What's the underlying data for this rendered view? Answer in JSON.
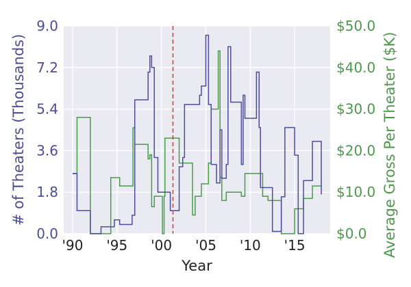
{
  "chart_data": {
    "type": "line",
    "step": "post",
    "xlabel": "Year",
    "ylabel_left": "# of Theaters (Thousands)",
    "ylabel_right": "Average Gross Per Theater ($K)",
    "xlim": [
      1989.0,
      2019.0
    ],
    "ylim_left": [
      0,
      9.0
    ],
    "ylim_right": [
      0,
      50.0
    ],
    "x_ticks": [
      1990,
      1995,
      2000,
      2005,
      2010,
      2015
    ],
    "x_tick_labels": [
      "'90",
      "'95",
      "'00",
      "'05",
      "'10",
      "'15"
    ],
    "y_left_ticks": [
      0,
      1.8,
      3.6,
      5.4,
      7.2,
      9.0
    ],
    "y_left_tick_labels": [
      "0.0",
      "1.8",
      "3.6",
      "5.4",
      "7.2",
      "9.0"
    ],
    "y_right_ticks": [
      0,
      10,
      20,
      30,
      40,
      50
    ],
    "y_right_tick_labels": [
      "$0.0",
      "$10.0",
      "$20.0",
      "$30.0",
      "$40.0",
      "$50.0"
    ],
    "vline_x": 2001.3,
    "grid": true,
    "colors": {
      "theaters": "#4c4c9c",
      "gross": "#4a9a4a",
      "vline": "#b05050",
      "left_axis_text": "#4c4c9c",
      "right_axis_text": "#4a9a4a",
      "plot_bg": "#eaeaf2"
    },
    "series": [
      {
        "axis": "left",
        "x": [
          1990.0,
          1990.3,
          1990.5,
          1991.0,
          1992.0,
          1993.2,
          1994.3,
          1994.7,
          1995.3,
          1996.5,
          1996.7,
          1996.8,
          1997.0,
          1998.3,
          1998.5,
          1998.7,
          1998.9,
          1999.2,
          1999.6,
          2000.0,
          2000.1,
          2000.3,
          2000.4,
          2000.8,
          2001.0,
          2002.0,
          2002.3,
          2002.4,
          2002.6,
          2002.8,
          2003.5,
          2003.8,
          2003.95,
          2004.1,
          2004.3,
          2004.5,
          2005.0,
          2005.3,
          2005.6,
          2006.2,
          2006.4,
          2006.6,
          2006.8,
          2007.1,
          2007.3,
          2007.5,
          2007.8,
          2008.5,
          2009.0,
          2009.2,
          2009.4,
          2009.7,
          2010.7,
          2011.0,
          2011.15,
          2011.4,
          2012.0,
          2012.5,
          2013.5,
          2013.9,
          2014.6,
          2015.0,
          2015.4,
          2016.0,
          2016.3,
          2017.0,
          2017.5,
          2018.0
        ],
        "values": [
          2.6,
          2.6,
          1.0,
          1.0,
          0.0,
          0.3,
          0.3,
          0.6,
          0.4,
          0.4,
          0.8,
          0.8,
          5.8,
          5.8,
          7.0,
          7.7,
          7.2,
          3.3,
          1.8,
          1.8,
          1.8,
          1.8,
          1.8,
          1.8,
          1.0,
          2.9,
          2.9,
          3.3,
          5.6,
          5.6,
          5.6,
          5.6,
          5.6,
          5.6,
          6.0,
          6.4,
          8.6,
          5.6,
          3.0,
          2.2,
          2.2,
          4.5,
          2.4,
          2.4,
          3.0,
          8.1,
          5.7,
          5.7,
          3.0,
          6.0,
          5.0,
          5.0,
          7.0,
          4.6,
          2.0,
          2.0,
          2.0,
          0.1,
          1.6,
          4.6,
          4.6,
          3.4,
          0.0,
          2.3,
          2.3,
          4.0,
          4.0,
          1.7
        ],
        "end_x": 2018.0
      },
      {
        "axis": "right",
        "x": [
          1990.0,
          1990.3,
          1990.5,
          1991.0,
          1992.0,
          1993.2,
          1994.3,
          1994.7,
          1995.3,
          1996.5,
          1996.7,
          1996.8,
          1997.0,
          1998.3,
          1998.5,
          1998.7,
          1998.9,
          1999.2,
          1999.6,
          2000.0,
          2000.1,
          2000.3,
          2000.4,
          2000.8,
          2001.0,
          2002.0,
          2002.3,
          2002.4,
          2002.6,
          2002.8,
          2003.5,
          2003.8,
          2003.95,
          2004.1,
          2004.3,
          2004.5,
          2005.0,
          2005.3,
          2005.6,
          2006.2,
          2006.4,
          2006.6,
          2006.8,
          2007.1,
          2007.3,
          2007.5,
          2007.8,
          2008.5,
          2009.0,
          2009.2,
          2009.4,
          2009.7,
          2010.7,
          2011.0,
          2011.15,
          2011.4,
          2012.0,
          2012.5,
          2013.5,
          2013.9,
          2014.6,
          2015.0,
          2015.4,
          2016.0,
          2016.3,
          2017.0,
          2017.5,
          2018.0
        ],
        "values": [
          14.5,
          14.5,
          28.0,
          28.0,
          0.0,
          0.0,
          13.5,
          13.5,
          11.5,
          11.5,
          11.5,
          25.5,
          21.5,
          21.5,
          18.0,
          19.0,
          6.5,
          9.0,
          9.0,
          9.0,
          0.0,
          9.0,
          23.0,
          23.0,
          23.0,
          17.0,
          17.0,
          17.0,
          17.0,
          17.0,
          4.5,
          9.0,
          9.0,
          9.0,
          9.0,
          12.0,
          12.0,
          17.0,
          30.0,
          30.0,
          44.0,
          13.5,
          8.0,
          8.0,
          10.0,
          10.0,
          10.0,
          10.0,
          9.0,
          9.0,
          14.5,
          14.5,
          14.5,
          14.5,
          14.5,
          9.0,
          8.0,
          8.0,
          0.0,
          0.0,
          0.0,
          6.0,
          6.0,
          8.5,
          8.5,
          11.5,
          11.5,
          11.5
        ],
        "end_x": 2018.0
      }
    ]
  }
}
